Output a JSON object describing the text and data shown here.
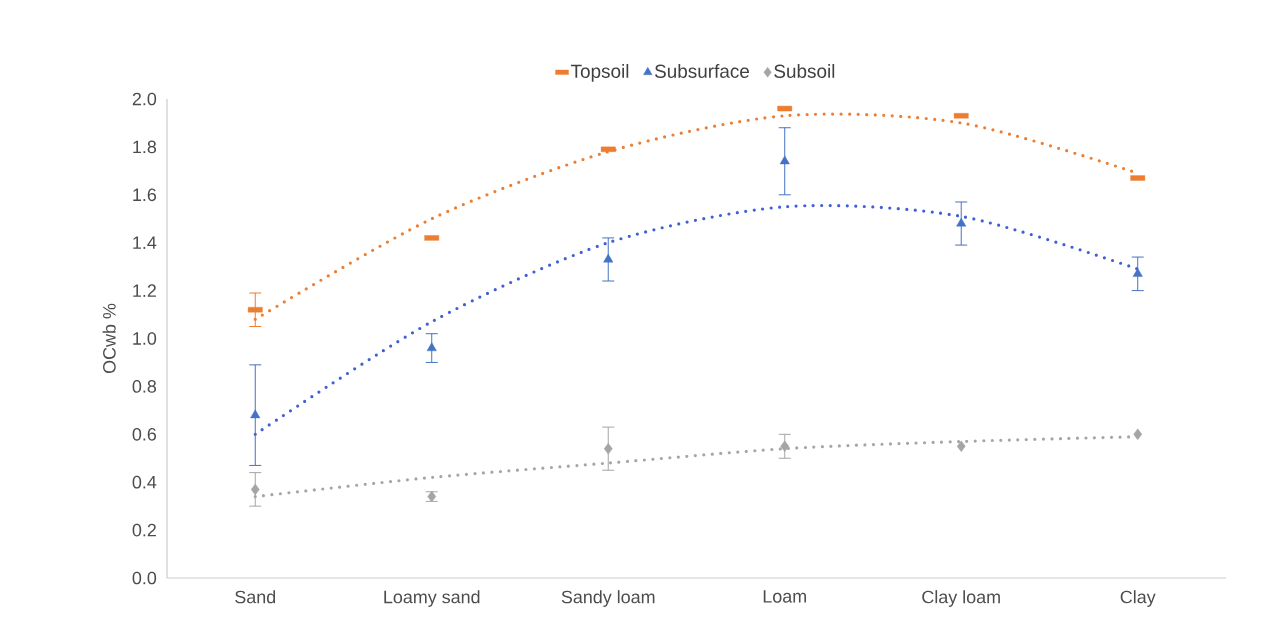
{
  "chart_data": {
    "type": "scatter",
    "ylabel": "OCwb %",
    "categories": [
      "Sand",
      "Loamy sand",
      "Sandy loam",
      "Loam",
      "Clay loam",
      "Clay"
    ],
    "ylim": [
      0,
      2.0
    ],
    "yticks": [
      {
        "value": 0,
        "label": "0.0"
      },
      {
        "value": 0.2,
        "label": "0.2"
      },
      {
        "value": 0.4,
        "label": "0.4"
      },
      {
        "value": 0.6,
        "label": "0.6"
      },
      {
        "value": 0.8,
        "label": "0.8"
      },
      {
        "value": 1.0,
        "label": "1.0"
      },
      {
        "value": 1.2,
        "label": "1.2"
      },
      {
        "value": 1.4,
        "label": "1.4"
      },
      {
        "value": 1.6,
        "label": "1.6"
      },
      {
        "value": 1.8,
        "label": "1.8"
      },
      {
        "value": 2.0,
        "label": "2.0"
      }
    ],
    "grid": false,
    "legend": "top",
    "series": [
      {
        "name": "Topsoil",
        "marker": "square",
        "color": "#ed7d31",
        "values": [
          1.12,
          1.42,
          1.79,
          1.96,
          1.93,
          1.67
        ],
        "errors": [
          0.07,
          null,
          null,
          null,
          null,
          null
        ]
      },
      {
        "name": "Subsurface",
        "marker": "triangle",
        "color": "#4472c4",
        "values": [
          0.68,
          0.96,
          1.33,
          1.74,
          1.48,
          1.27
        ],
        "errors": [
          0.21,
          0.06,
          0.09,
          0.14,
          0.09,
          0.07
        ]
      },
      {
        "name": "Subsoil",
        "marker": "diamond",
        "color": "#a5a5a5",
        "values": [
          0.37,
          0.34,
          0.54,
          0.55,
          0.55,
          0.6
        ],
        "errors": [
          0.07,
          0.02,
          0.09,
          0.05,
          null,
          null
        ]
      },
      {
        "type": "line",
        "line_style": "dotted",
        "marker": "none",
        "color": "#ed7d31",
        "values": [
          1.08,
          1.5,
          1.78,
          1.93,
          1.9,
          1.69
        ]
      },
      {
        "type": "line",
        "line_style": "dotted",
        "marker": "none",
        "color": "#3f5fd6",
        "values": [
          0.6,
          1.07,
          1.4,
          1.55,
          1.51,
          1.29
        ]
      },
      {
        "type": "line",
        "line_style": "dotted",
        "marker": "none",
        "color": "#a5a5a5",
        "values": [
          0.34,
          0.42,
          0.48,
          0.54,
          0.57,
          0.59
        ]
      }
    ]
  }
}
